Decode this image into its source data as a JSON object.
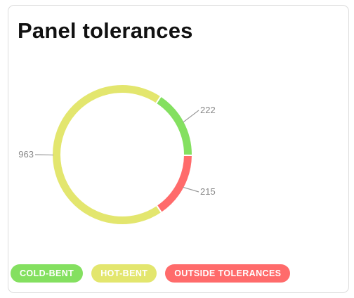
{
  "title": "Panel tolerances",
  "chart_data": {
    "type": "pie",
    "variant": "donut",
    "title": "Panel tolerances",
    "categories": [
      "COLD-BENT",
      "HOT-BENT",
      "OUTSIDE TOLERANCES"
    ],
    "values": [
      222,
      963,
      215
    ],
    "colors": [
      "#84e060",
      "#e3e66e",
      "#ff6b6b"
    ],
    "data_labels": [
      "222",
      "963",
      "215"
    ],
    "legend_position": "bottom-left"
  }
}
